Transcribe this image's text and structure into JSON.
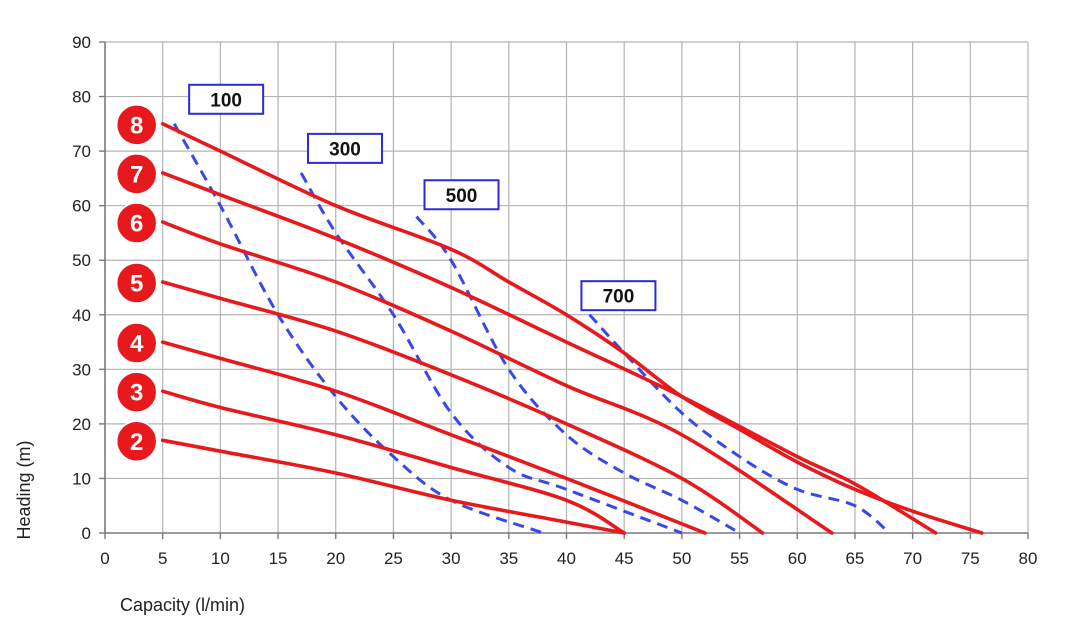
{
  "chart_data": {
    "type": "line",
    "title": "",
    "xlabel": "Capacity (l/min)",
    "ylabel": "Heading (m)",
    "xlim": [
      0,
      80
    ],
    "ylim": [
      0,
      90
    ],
    "xticks": [
      0,
      5,
      10,
      15,
      20,
      25,
      30,
      35,
      40,
      45,
      50,
      55,
      60,
      65,
      70,
      75,
      80
    ],
    "yticks": [
      0,
      10,
      20,
      30,
      40,
      50,
      60,
      70,
      80,
      90
    ],
    "grid": true,
    "colors": {
      "series": "#e8191c",
      "iso": "#3a48e8",
      "badge": "#e8191c",
      "box_border": "#2b2bd9"
    },
    "series": [
      {
        "name": "8",
        "points": [
          [
            5,
            75
          ],
          [
            10,
            70
          ],
          [
            20,
            60
          ],
          [
            30,
            52
          ],
          [
            35,
            46
          ],
          [
            40,
            40
          ],
          [
            45,
            33
          ],
          [
            50,
            25
          ],
          [
            55,
            19
          ],
          [
            60,
            13
          ],
          [
            65,
            8
          ],
          [
            70,
            4
          ],
          [
            76,
            0
          ]
        ]
      },
      {
        "name": "7",
        "points": [
          [
            5,
            66
          ],
          [
            10,
            62
          ],
          [
            20,
            54
          ],
          [
            30,
            45
          ],
          [
            40,
            35
          ],
          [
            50,
            25
          ],
          [
            60,
            14
          ],
          [
            65,
            9
          ],
          [
            72,
            0
          ]
        ]
      },
      {
        "name": "6",
        "points": [
          [
            5,
            57
          ],
          [
            10,
            53
          ],
          [
            20,
            46
          ],
          [
            30,
            37
          ],
          [
            40,
            27
          ],
          [
            50,
            18
          ],
          [
            63,
            0
          ]
        ]
      },
      {
        "name": "5",
        "points": [
          [
            5,
            46
          ],
          [
            10,
            43
          ],
          [
            20,
            37
          ],
          [
            30,
            29
          ],
          [
            40,
            20
          ],
          [
            50,
            10
          ],
          [
            57,
            0
          ]
        ]
      },
      {
        "name": "4",
        "points": [
          [
            5,
            35
          ],
          [
            10,
            32
          ],
          [
            20,
            26
          ],
          [
            30,
            18
          ],
          [
            40,
            10
          ],
          [
            52,
            0
          ]
        ]
      },
      {
        "name": "3",
        "points": [
          [
            5,
            26
          ],
          [
            10,
            23
          ],
          [
            20,
            18
          ],
          [
            30,
            12
          ],
          [
            40,
            6
          ],
          [
            45,
            0
          ]
        ]
      },
      {
        "name": "2",
        "points": [
          [
            5,
            17
          ],
          [
            10,
            15
          ],
          [
            20,
            11
          ],
          [
            30,
            6
          ],
          [
            40,
            2
          ],
          [
            45,
            0
          ]
        ]
      }
    ],
    "iso_lines": [
      {
        "name": "100",
        "points": [
          [
            6,
            75
          ],
          [
            10,
            60
          ],
          [
            15,
            40
          ],
          [
            20,
            25
          ],
          [
            25,
            14
          ],
          [
            30,
            6
          ],
          [
            38,
            0
          ]
        ]
      },
      {
        "name": "300",
        "points": [
          [
            17,
            66
          ],
          [
            20,
            55
          ],
          [
            25,
            40
          ],
          [
            30,
            22
          ],
          [
            35,
            12
          ],
          [
            40,
            8
          ],
          [
            50,
            0
          ]
        ]
      },
      {
        "name": "500",
        "points": [
          [
            27,
            58
          ],
          [
            30,
            50
          ],
          [
            35,
            30
          ],
          [
            40,
            18
          ],
          [
            45,
            11
          ],
          [
            50,
            6
          ],
          [
            55,
            0
          ]
        ]
      },
      {
        "name": "700",
        "points": [
          [
            42,
            40
          ],
          [
            45,
            33
          ],
          [
            50,
            22
          ],
          [
            55,
            14
          ],
          [
            60,
            8
          ],
          [
            65,
            5
          ],
          [
            68,
            0
          ]
        ]
      }
    ],
    "iso_labels": [
      {
        "text": "100",
        "x": 10.5,
        "y": 79.5
      },
      {
        "text": "300",
        "x": 20.8,
        "y": 70.5
      },
      {
        "text": "500",
        "x": 30.9,
        "y": 62.0
      },
      {
        "text": "700",
        "x": 44.5,
        "y": 43.5
      }
    ]
  }
}
